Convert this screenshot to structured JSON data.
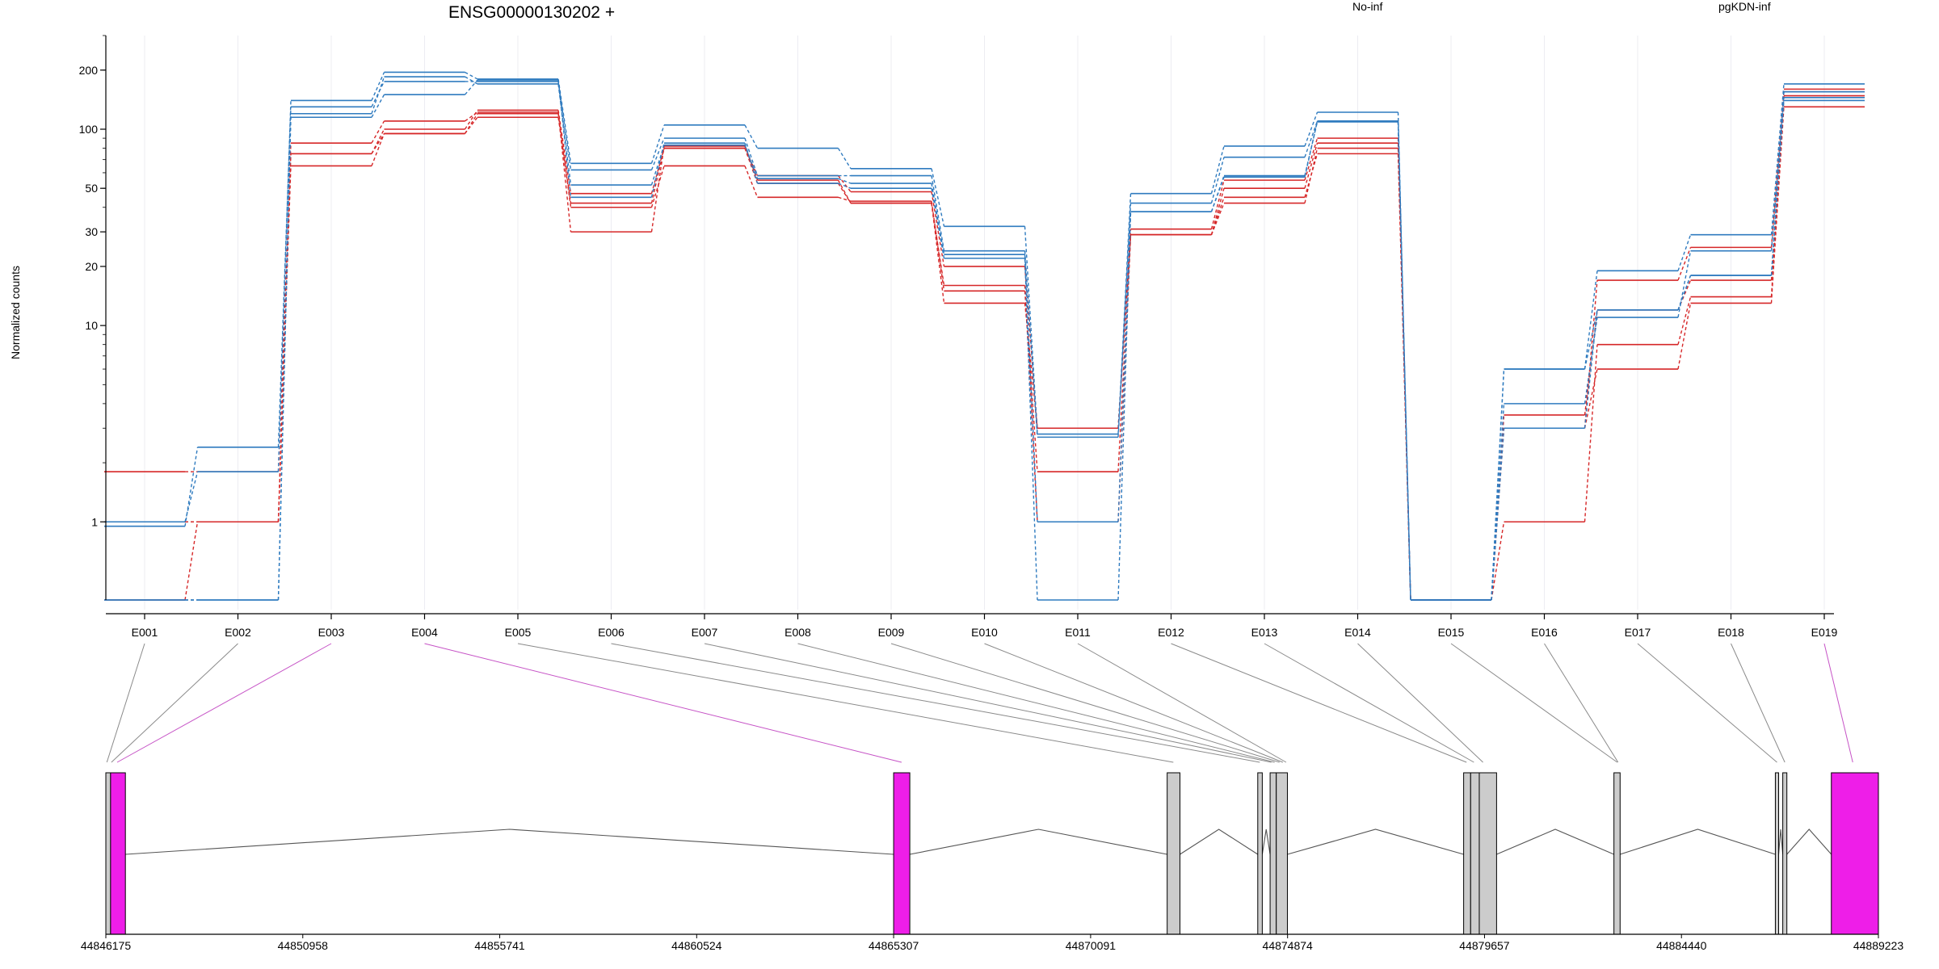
{
  "chart_data": {
    "type": "line",
    "title": "ENSG00000130202 +",
    "ylabel": "Normalized counts",
    "yscale": "log",
    "ylim": [
      0.4,
      300
    ],
    "yticks": [
      1,
      10,
      20,
      30,
      50,
      100,
      200
    ],
    "ytick_labels": [
      "1",
      "10",
      "20",
      "30",
      "50",
      "100",
      "200"
    ],
    "zero_floor_value": 0.4,
    "categories": [
      "E001",
      "E002",
      "E003",
      "E004",
      "E005",
      "E006",
      "E007",
      "E008",
      "E009",
      "E010",
      "E011",
      "E012",
      "E013",
      "E014",
      "E015",
      "E016",
      "E017",
      "E018",
      "E019"
    ],
    "legend": [
      {
        "label": "No-inf",
        "color": "#d62728"
      },
      {
        "label": "pgKDN-inf",
        "color": "#2f7bbf"
      }
    ],
    "series": [
      {
        "name": "No-inf",
        "group": 0,
        "values": [
          1.8,
          1.8,
          75,
          100,
          125,
          47,
          80,
          58,
          48,
          20,
          3,
          31,
          55,
          90,
          0.4,
          3,
          17,
          25,
          155
        ]
      },
      {
        "name": "No-inf",
        "group": 0,
        "values": [
          1.0,
          1.0,
          65,
          95,
          120,
          40,
          65,
          45,
          43,
          15,
          1.8,
          29,
          50,
          85,
          0.4,
          3.5,
          12,
          17,
          160
        ]
      },
      {
        "name": "No-inf",
        "group": 0,
        "values": [
          1.0,
          1.0,
          85,
          110,
          122,
          30,
          82,
          55,
          42,
          16,
          1.0,
          29,
          45,
          75,
          0.4,
          1.0,
          8,
          14,
          148
        ]
      },
      {
        "name": "No-inf",
        "group": 0,
        "values": [
          0.4,
          1.0,
          75,
          95,
          115,
          42,
          80,
          53,
          42,
          13,
          3,
          29,
          42,
          80,
          0.4,
          3,
          6,
          13,
          130
        ]
      },
      {
        "name": "pgKDN-inf",
        "group": 1,
        "values": [
          1.0,
          1.8,
          140,
          195,
          180,
          67,
          105,
          80,
          63,
          32,
          2.8,
          47,
          82,
          122,
          0.4,
          6,
          19,
          29,
          170
        ]
      },
      {
        "name": "pgKDN-inf",
        "group": 1,
        "values": [
          0.95,
          2.4,
          130,
          175,
          175,
          62,
          90,
          58,
          58,
          24,
          2.7,
          42,
          72,
          110,
          0.4,
          6,
          12,
          18,
          155
        ]
      },
      {
        "name": "pgKDN-inf",
        "group": 1,
        "values": [
          0.4,
          0.4,
          120,
          185,
          170,
          52,
          83,
          56,
          53,
          23,
          1.0,
          38,
          57,
          110,
          0.4,
          4,
          11,
          24,
          145
        ]
      },
      {
        "name": "pgKDN-inf",
        "group": 1,
        "values": [
          0.4,
          0.4,
          115,
          150,
          178,
          45,
          85,
          53,
          50,
          22,
          0.4,
          38,
          58,
          109,
          0.4,
          3,
          12,
          18,
          140
        ]
      }
    ],
    "gene_model": {
      "genomic_ticks": [
        "44846175",
        "44850958",
        "44855741",
        "44860524",
        "44865307",
        "44870091",
        "44874874",
        "44879657",
        "44884440",
        "44889223"
      ],
      "genomic_start": 44846175,
      "genomic_end": 44889223,
      "exons": [
        {
          "start": 44846175,
          "end": 44846290,
          "type": "noncoding"
        },
        {
          "start": 44846290,
          "end": 44846650,
          "type": "coding"
        },
        {
          "start": 44865307,
          "end": 44865700,
          "type": "coding"
        },
        {
          "start": 44871950,
          "end": 44872260,
          "type": "noncoding"
        },
        {
          "start": 44874150,
          "end": 44874260,
          "type": "noncoding"
        },
        {
          "start": 44874450,
          "end": 44874600,
          "type": "noncoding"
        },
        {
          "start": 44874600,
          "end": 44874870,
          "type": "noncoding"
        },
        {
          "start": 44879150,
          "end": 44879320,
          "type": "noncoding"
        },
        {
          "start": 44879320,
          "end": 44879530,
          "type": "noncoding"
        },
        {
          "start": 44879530,
          "end": 44879950,
          "type": "noncoding"
        },
        {
          "start": 44882800,
          "end": 44882950,
          "type": "noncoding"
        },
        {
          "start": 44886720,
          "end": 44886800,
          "type": "noncoding"
        },
        {
          "start": 44886900,
          "end": 44887000,
          "type": "noncoding"
        },
        {
          "start": 44888080,
          "end": 44889223,
          "type": "coding"
        }
      ],
      "connectors": [
        {
          "exon": "E001",
          "pos": 44846200,
          "highlight": false
        },
        {
          "exon": "E002",
          "pos": 44846310,
          "highlight": false
        },
        {
          "exon": "E003",
          "pos": 44846450,
          "highlight": true
        },
        {
          "exon": "E004",
          "pos": 44865500,
          "highlight": true
        },
        {
          "exon": "E005",
          "pos": 44872100,
          "highlight": false
        },
        {
          "exon": "E006",
          "pos": 44874200,
          "highlight": false
        },
        {
          "exon": "E007",
          "pos": 44874480,
          "highlight": false
        },
        {
          "exon": "E008",
          "pos": 44874560,
          "highlight": false
        },
        {
          "exon": "E009",
          "pos": 44874680,
          "highlight": false
        },
        {
          "exon": "E010",
          "pos": 44874760,
          "highlight": false
        },
        {
          "exon": "E011",
          "pos": 44874840,
          "highlight": false
        },
        {
          "exon": "E012",
          "pos": 44879220,
          "highlight": false
        },
        {
          "exon": "E013",
          "pos": 44879400,
          "highlight": false
        },
        {
          "exon": "E014",
          "pos": 44879620,
          "highlight": false
        },
        {
          "exon": "E015",
          "pos": 44882880,
          "highlight": false
        },
        {
          "exon": "E016",
          "pos": 44882900,
          "highlight": false
        },
        {
          "exon": "E017",
          "pos": 44886760,
          "highlight": false
        },
        {
          "exon": "E018",
          "pos": 44886950,
          "highlight": false
        },
        {
          "exon": "E019",
          "pos": 44888600,
          "highlight": true
        }
      ]
    }
  },
  "colors": {
    "no_inf": "#d62728",
    "pgkdn_inf": "#2f7bbf",
    "coding_exon": "#ee1ee8",
    "noncoding_exon": "#cccccc",
    "connector": "#8a8a8a",
    "connector_highlight": "#c653c6"
  }
}
